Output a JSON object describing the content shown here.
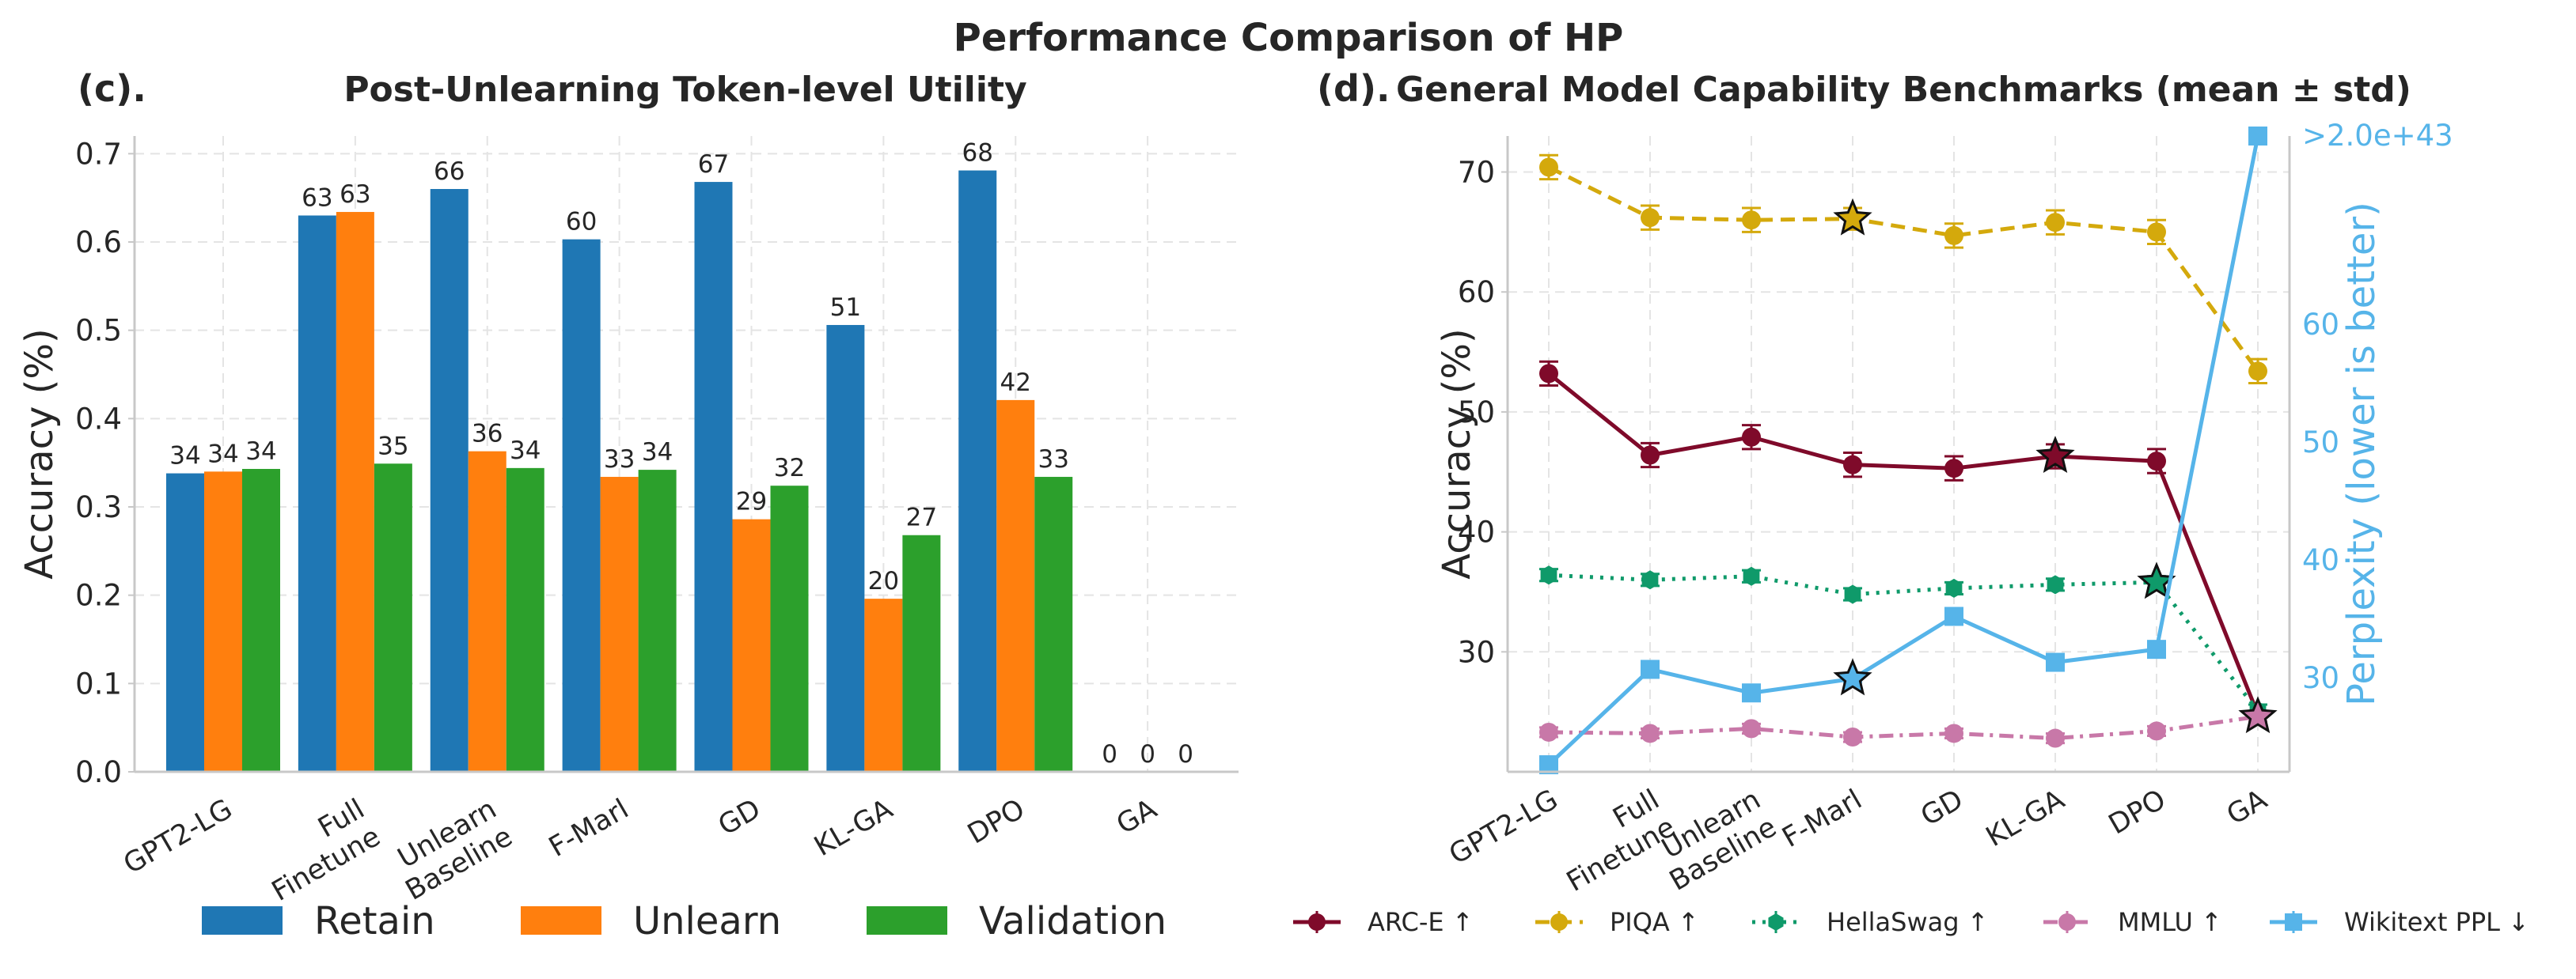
{
  "figure": {
    "title": "Performance Comparison of HP",
    "panel_c_label": "(c).",
    "panel_d_label": "(d)."
  },
  "chart_data": [
    {
      "type": "bar",
      "title": "Post-Unlearning Token-level Utility",
      "xlabel": "",
      "ylabel": "Accuracy (%)",
      "ylim": [
        0,
        0.72
      ],
      "yticks": [
        "0.0",
        "0.1",
        "0.2",
        "0.3",
        "0.4",
        "0.5",
        "0.6",
        "0.7"
      ],
      "grid": true,
      "legend_position": "bottom",
      "categories": [
        "GPT2-LG",
        "Full\nFinetune",
        "Unlearn\nBaseline",
        "F-Marl",
        "GD",
        "KL-GA",
        "DPO",
        "GA"
      ],
      "series": [
        {
          "name": "Retain",
          "color": "#1f77b4",
          "values": [
            0.338,
            0.63,
            0.66,
            0.603,
            0.668,
            0.506,
            0.681,
            0.0
          ],
          "labels": [
            "34",
            "63",
            "66",
            "60",
            "67",
            "51",
            "68",
            "0"
          ]
        },
        {
          "name": "Unlearn",
          "color": "#ff7f0e",
          "values": [
            0.34,
            0.634,
            0.363,
            0.334,
            0.286,
            0.196,
            0.421,
            0.0
          ],
          "labels": [
            "34",
            "63",
            "36",
            "33",
            "29",
            "20",
            "42",
            "0"
          ]
        },
        {
          "name": "Validation",
          "color": "#2ca02c",
          "values": [
            0.343,
            0.349,
            0.344,
            0.342,
            0.324,
            0.268,
            0.334,
            0.0
          ],
          "labels": [
            "34",
            "35",
            "34",
            "34",
            "32",
            "27",
            "33",
            "0"
          ]
        }
      ]
    },
    {
      "type": "line",
      "title": "General Model Capability Benchmarks (mean ± std)",
      "xlabel": "",
      "ylabel": "Accuracy (%)",
      "y2label": "Perplexity (lower is better)",
      "ylim": [
        20,
        73
      ],
      "y2lim": [
        22,
        76
      ],
      "yticks": [
        "30",
        "40",
        "50",
        "60",
        "70"
      ],
      "y2ticks": [
        "30",
        "40",
        "50",
        "60"
      ],
      "y2_overflow_label": ">2.0e+43",
      "grid": true,
      "legend_position": "bottom",
      "categories": [
        "GPT2-LG",
        "Full\nFinetune",
        "Unlearn\nBaseline",
        "F-Marl",
        "GD",
        "KL-GA",
        "DPO",
        "GA"
      ],
      "series": [
        {
          "name": "ARC-E ↑",
          "color": "#7f0a2a",
          "style": "solid",
          "marker": "circle",
          "values": [
            53.2,
            46.4,
            47.9,
            45.6,
            45.3,
            46.3,
            45.9,
            24.8
          ],
          "std": [
            1.0,
            1.0,
            1.0,
            1.0,
            1.0,
            1.0,
            1.0,
            0.8
          ],
          "star_index": 5,
          "axis": "left"
        },
        {
          "name": "PIQA ↑",
          "color": "#d4a90c",
          "style": "dashed",
          "marker": "circle",
          "values": [
            70.4,
            66.2,
            66.0,
            66.1,
            64.7,
            65.8,
            65.0,
            53.4
          ],
          "std": [
            1.0,
            1.0,
            1.0,
            0.9,
            1.0,
            1.0,
            1.0,
            1.0
          ],
          "star_index": 3,
          "axis": "left"
        },
        {
          "name": "HellaSwag ↑",
          "color": "#0f9a6a",
          "style": "dotted",
          "marker": "hexagon",
          "values": [
            36.4,
            36.0,
            36.3,
            34.8,
            35.3,
            35.6,
            35.8,
            25.1
          ],
          "std": [
            0.5,
            0.5,
            0.5,
            0.5,
            0.5,
            0.5,
            0.5,
            0.5
          ],
          "star_index": 6,
          "axis": "left"
        },
        {
          "name": "MMLU ↑",
          "color": "#c878a8",
          "style": "dashdot",
          "marker": "circle",
          "values": [
            23.3,
            23.2,
            23.6,
            22.9,
            23.2,
            22.8,
            23.4,
            24.6
          ],
          "std": [
            0.4,
            0.4,
            0.4,
            0.4,
            0.4,
            0.4,
            0.4,
            0.4
          ],
          "star_index": 7,
          "axis": "left"
        },
        {
          "name": "Wikitext PPL ↓",
          "color": "#56b4e9",
          "style": "solid",
          "marker": "square",
          "values": [
            22.6,
            30.7,
            28.7,
            29.9,
            35.2,
            31.3,
            32.4,
            76.0
          ],
          "std": [
            0.3,
            0.3,
            0.3,
            0.3,
            0.3,
            0.3,
            0.3,
            0.0
          ],
          "star_index": 3,
          "axis": "right"
        }
      ]
    }
  ]
}
